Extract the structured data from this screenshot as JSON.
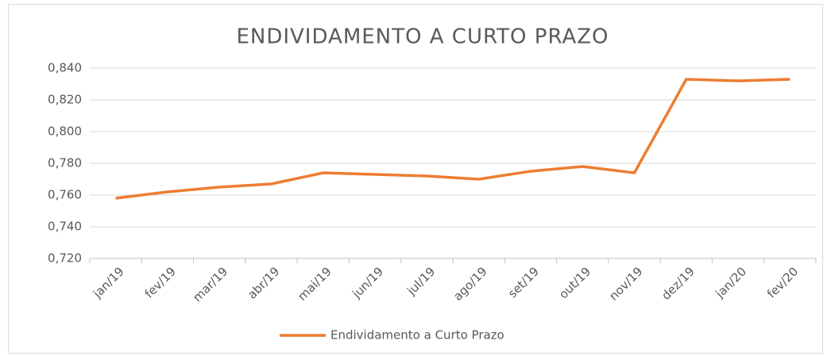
{
  "chart_data": {
    "type": "line",
    "title": "ENDIVIDAMENTO A CURTO PRAZO",
    "categories": [
      "jan/19",
      "fev/19",
      "mar/19",
      "abr/19",
      "mai/19",
      "jun/19",
      "jul/19",
      "ago/19",
      "set/19",
      "out/19",
      "nov/19",
      "dez/19",
      "jan/20",
      "fev/20"
    ],
    "series": [
      {
        "name": "Endividamento a Curto Prazo",
        "color": "#ed7d31",
        "values": [
          0.758,
          0.762,
          0.765,
          0.767,
          0.774,
          0.773,
          0.772,
          0.77,
          0.775,
          0.778,
          0.774,
          0.833,
          0.832,
          0.833
        ]
      }
    ],
    "ylim": [
      0.72,
      0.84
    ],
    "yticks": [
      {
        "value": 0.72,
        "label": "0,720"
      },
      {
        "value": 0.74,
        "label": "0,740"
      },
      {
        "value": 0.76,
        "label": "0,760"
      },
      {
        "value": 0.78,
        "label": "0,780"
      },
      {
        "value": 0.8,
        "label": "0,800"
      },
      {
        "value": 0.82,
        "label": "0,820"
      },
      {
        "value": 0.84,
        "label": "0,840"
      }
    ],
    "grid": true,
    "legend": "bottom"
  }
}
